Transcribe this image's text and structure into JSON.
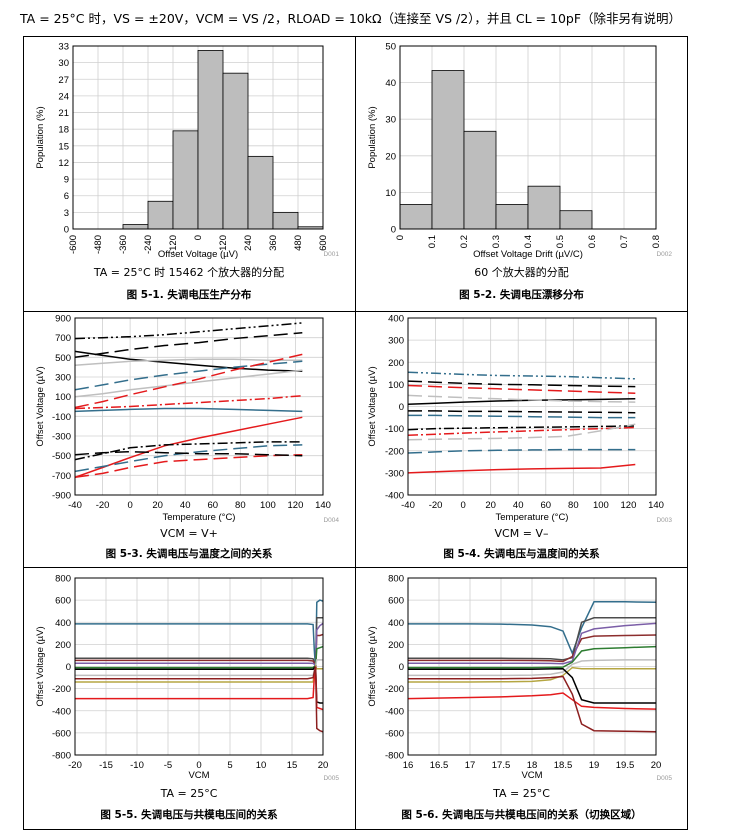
{
  "header": {
    "conditions": "TA = 25°C 时，VS = ±20V，VCM = VS /2，RLOAD = 10kΩ（连接至 VS /2），并且 CL = 10pF（除非另有说明）"
  },
  "figures": [
    {
      "caption": "图 5-1. 失调电压生产分布",
      "note": "TA = 25°C 时 15462 个放大器的分配",
      "code": "D001"
    },
    {
      "caption": "图 5-2. 失调电压漂移分布",
      "note": "60 个放大器的分配",
      "code": "D002"
    },
    {
      "caption": "图 5-3. 失调电压与温度之间的关系",
      "note": "VCM = V+",
      "code": "D004"
    },
    {
      "caption": "图 5-4. 失调电压与温度间的关系",
      "note": "VCM = V–",
      "code": "D003"
    },
    {
      "caption": "图 5-5. 失调电压与共模电压间的关系",
      "note": "TA = 25°C",
      "code": "D005"
    },
    {
      "caption": "图 5-6. 失调电压与共模电压间的关系（切换区域）",
      "note": "TA = 25°C",
      "code": "D005"
    }
  ],
  "chart_data": [
    {
      "type": "bar",
      "xlabel": "Offset Voltage (µV)",
      "ylabel": "Population (%)",
      "xticks": [
        -600,
        -480,
        -360,
        -240,
        -120,
        0,
        120,
        240,
        360,
        480,
        600
      ],
      "yticks": [
        0,
        3,
        6,
        9,
        12,
        15,
        18,
        21,
        24,
        27,
        30,
        33
      ],
      "xlim": [
        -600,
        600
      ],
      "ylim": [
        0,
        33
      ],
      "bins": [
        [
          -360,
          -240
        ],
        [
          -240,
          -120
        ],
        [
          -120,
          0
        ],
        [
          0,
          120
        ],
        [
          120,
          240
        ],
        [
          240,
          360
        ],
        [
          360,
          480
        ],
        [
          480,
          600
        ]
      ],
      "values": [
        0.8,
        5.0,
        17.7,
        32.2,
        28.1,
        13.1,
        3.0,
        0.4
      ]
    },
    {
      "type": "bar",
      "xlabel": "Offset Voltage Drift (µV/C)",
      "ylabel": "Population (%)",
      "xticks": [
        0,
        0.1,
        0.2,
        0.3,
        0.4,
        0.5,
        0.6,
        0.7,
        0.8
      ],
      "yticks": [
        0,
        10,
        20,
        30,
        40,
        50
      ],
      "xlim": [
        0,
        0.8
      ],
      "ylim": [
        0,
        50
      ],
      "bins": [
        [
          0,
          0.1
        ],
        [
          0.1,
          0.2
        ],
        [
          0.2,
          0.3
        ],
        [
          0.3,
          0.4
        ],
        [
          0.4,
          0.5
        ],
        [
          0.5,
          0.6
        ]
      ],
      "values": [
        6.7,
        43.3,
        26.7,
        6.7,
        11.7,
        5.0
      ]
    },
    {
      "type": "line",
      "xlabel": "Temperature (°C)",
      "ylabel": "Offset Voltage (µV)",
      "xticks": [
        -40,
        -20,
        0,
        20,
        40,
        60,
        80,
        100,
        120,
        140
      ],
      "yticks": [
        -900,
        -700,
        -500,
        -300,
        -100,
        100,
        300,
        500,
        700,
        900
      ],
      "xlim": [
        -40,
        140
      ],
      "ylim": [
        -900,
        900
      ],
      "x": [
        -40,
        -20,
        0,
        25,
        50,
        75,
        100,
        125
      ],
      "series": [
        {
          "color": "#000000",
          "dash": "10 3 2 3 2 3",
          "values": [
            690,
            700,
            710,
            730,
            760,
            790,
            820,
            850
          ]
        },
        {
          "color": "#000000",
          "dash": "14 6",
          "values": [
            500,
            540,
            580,
            620,
            650,
            690,
            720,
            750
          ]
        },
        {
          "color": "#000000",
          "dash": "",
          "values": [
            560,
            520,
            480,
            450,
            420,
            390,
            370,
            360
          ]
        },
        {
          "color": "#bfbfbf",
          "dash": "",
          "values": [
            420,
            440,
            460,
            470,
            480,
            480,
            470,
            470
          ]
        },
        {
          "color": "#bfbfbf",
          "dash": "",
          "values": [
            100,
            130,
            170,
            210,
            250,
            290,
            330,
            370
          ]
        },
        {
          "color": "#336e8c",
          "dash": "14 6",
          "values": [
            170,
            220,
            270,
            320,
            360,
            400,
            430,
            460
          ]
        },
        {
          "color": "#e41a1c",
          "dash": "14 6",
          "values": [
            -10,
            50,
            120,
            200,
            280,
            370,
            450,
            530
          ]
        },
        {
          "color": "#e41a1c",
          "dash": "10 3 2 3",
          "values": [
            -20,
            -10,
            0,
            20,
            40,
            60,
            80,
            110
          ]
        },
        {
          "color": "#336e8c",
          "dash": "",
          "values": [
            -50,
            -40,
            -30,
            -20,
            -20,
            -30,
            -40,
            -50
          ]
        },
        {
          "color": "#e41a1c",
          "dash": "",
          "values": [
            -720,
            -620,
            -520,
            -400,
            -320,
            -250,
            -180,
            -110
          ]
        },
        {
          "color": "#000000",
          "dash": "10 3 2 3",
          "values": [
            -540,
            -480,
            -420,
            -390,
            -380,
            -370,
            -360,
            -360
          ]
        },
        {
          "color": "#336e8c",
          "dash": "14 6",
          "values": [
            -660,
            -610,
            -560,
            -500,
            -460,
            -430,
            -400,
            -390
          ]
        },
        {
          "color": "#e41a1c",
          "dash": "14 6",
          "values": [
            -720,
            -680,
            -620,
            -560,
            -540,
            -520,
            -500,
            -490
          ]
        },
        {
          "color": "#000000",
          "dash": "14 6",
          "values": [
            -490,
            -470,
            -460,
            -470,
            -480,
            -480,
            -490,
            -500
          ]
        }
      ]
    },
    {
      "type": "line",
      "xlabel": "Temperature (°C)",
      "ylabel": "Offset Voltage (µV)",
      "xticks": [
        -40,
        -20,
        0,
        20,
        40,
        60,
        80,
        100,
        120,
        140
      ],
      "yticks": [
        -400,
        -300,
        -200,
        -100,
        0,
        100,
        200,
        300,
        400
      ],
      "xlim": [
        -40,
        140
      ],
      "ylim": [
        -400,
        400
      ],
      "x": [
        -40,
        -20,
        0,
        25,
        50,
        75,
        100,
        125
      ],
      "series": [
        {
          "color": "#336e8c",
          "dash": "10 3 2 3 2 3",
          "values": [
            155,
            150,
            145,
            140,
            138,
            135,
            130,
            125
          ]
        },
        {
          "color": "#000000",
          "dash": "14 6",
          "values": [
            115,
            110,
            105,
            100,
            98,
            95,
            92,
            90
          ]
        },
        {
          "color": "#e41a1c",
          "dash": "14 6",
          "values": [
            95,
            90,
            85,
            80,
            75,
            70,
            65,
            60
          ]
        },
        {
          "color": "#000000",
          "dash": "",
          "values": [
            10,
            15,
            20,
            25,
            28,
            30,
            32,
            35
          ]
        },
        {
          "color": "#bfbfbf",
          "dash": "14 6",
          "values": [
            50,
            45,
            40,
            35,
            30,
            25,
            22,
            20
          ]
        },
        {
          "color": "#000000",
          "dash": "14 6",
          "values": [
            -20,
            -20,
            -22,
            -22,
            -24,
            -25,
            -26,
            -28
          ]
        },
        {
          "color": "#336e8c",
          "dash": "14 6",
          "values": [
            -40,
            -40,
            -42,
            -44,
            -46,
            -48,
            -50,
            -50
          ]
        },
        {
          "color": "#e41a1c",
          "dash": "10 3 2 3",
          "values": [
            -130,
            -125,
            -120,
            -115,
            -110,
            -105,
            -100,
            -95
          ]
        },
        {
          "color": "#000000",
          "dash": "10 3 2 3",
          "values": [
            -105,
            -100,
            -98,
            -96,
            -94,
            -92,
            -90,
            -88
          ]
        },
        {
          "color": "#bfbfbf",
          "dash": "14 6",
          "values": [
            -150,
            -148,
            -146,
            -144,
            -140,
            -135,
            -110,
            -80
          ]
        },
        {
          "color": "#336e8c",
          "dash": "14 6",
          "values": [
            -210,
            -205,
            -200,
            -198,
            -196,
            -195,
            -195,
            -195
          ]
        },
        {
          "color": "#e41a1c",
          "dash": "",
          "values": [
            -300,
            -295,
            -290,
            -285,
            -282,
            -280,
            -278,
            -262
          ]
        }
      ]
    },
    {
      "type": "line",
      "xlabel": "VCM",
      "ylabel": "Offset Voltage (µV)",
      "xticks": [
        -20,
        -15,
        -10,
        -5,
        0,
        5,
        10,
        15,
        20
      ],
      "yticks": [
        -800,
        -600,
        -400,
        -200,
        0,
        200,
        400,
        600,
        800
      ],
      "xlim": [
        -20,
        20
      ],
      "ylim": [
        -800,
        800
      ],
      "x": [
        -20,
        10,
        17.5,
        18.4,
        18.6,
        18.8,
        19.0,
        19.5,
        20
      ],
      "series": [
        {
          "color": "#336e8c",
          "values": [
            385,
            385,
            385,
            380,
            150,
            -20,
            580,
            600,
            590
          ]
        },
        {
          "color": "#4d4d4d",
          "values": [
            75,
            75,
            75,
            70,
            40,
            0,
            440,
            440,
            440
          ]
        },
        {
          "color": "#8c2d2d",
          "values": [
            55,
            55,
            55,
            50,
            30,
            0,
            280,
            280,
            290
          ]
        },
        {
          "color": "#7b5ea7",
          "values": [
            30,
            30,
            30,
            28,
            20,
            0,
            330,
            370,
            390
          ]
        },
        {
          "color": "#2e7d32",
          "values": [
            -10,
            -10,
            -10,
            -10,
            0,
            0,
            160,
            170,
            180
          ]
        },
        {
          "color": "#bfbfbf",
          "values": [
            -80,
            -80,
            -80,
            -80,
            -30,
            0,
            60,
            60,
            60
          ]
        },
        {
          "color": "#000000",
          "values": [
            -25,
            -25,
            -25,
            -25,
            -10,
            0,
            -320,
            -330,
            -330
          ]
        },
        {
          "color": "#b5a642",
          "values": [
            -140,
            -140,
            -140,
            -140,
            -60,
            0,
            -20,
            -20,
            -20
          ]
        },
        {
          "color": "#e41a1c",
          "values": [
            -290,
            -290,
            -290,
            -280,
            -100,
            0,
            -370,
            -380,
            -390
          ]
        },
        {
          "color": "#8c1f1f",
          "values": [
            -110,
            -110,
            -110,
            -100,
            -50,
            0,
            -560,
            -580,
            -590
          ]
        }
      ]
    },
    {
      "type": "line",
      "xlabel": "VCM",
      "ylabel": "Offset Voltage (µV)",
      "xticks": [
        16,
        16.5,
        17,
        17.5,
        18,
        18.5,
        19,
        19.5,
        20
      ],
      "yticks": [
        -800,
        -600,
        -400,
        -200,
        0,
        200,
        400,
        600,
        800
      ],
      "xlim": [
        16,
        20
      ],
      "ylim": [
        -800,
        800
      ],
      "x": [
        16,
        17,
        17.5,
        18,
        18.3,
        18.5,
        18.65,
        18.8,
        19,
        19.5,
        20
      ],
      "series": [
        {
          "color": "#336e8c",
          "values": [
            385,
            385,
            383,
            375,
            360,
            320,
            120,
            350,
            585,
            585,
            580
          ]
        },
        {
          "color": "#4d4d4d",
          "values": [
            75,
            75,
            74,
            72,
            70,
            60,
            80,
            400,
            440,
            440,
            440
          ]
        },
        {
          "color": "#8c2d2d",
          "values": [
            55,
            55,
            55,
            54,
            52,
            45,
            90,
            250,
            275,
            280,
            285
          ]
        },
        {
          "color": "#7b5ea7",
          "values": [
            30,
            30,
            30,
            30,
            28,
            25,
            50,
            300,
            340,
            370,
            390
          ]
        },
        {
          "color": "#2e7d32",
          "values": [
            -10,
            -10,
            -10,
            -10,
            -8,
            -5,
            40,
            140,
            160,
            170,
            180
          ]
        },
        {
          "color": "#bfbfbf",
          "values": [
            -80,
            -80,
            -80,
            -78,
            -70,
            -50,
            20,
            50,
            55,
            60,
            60
          ]
        },
        {
          "color": "#b5a642",
          "values": [
            -140,
            -140,
            -138,
            -135,
            -120,
            -80,
            -10,
            -20,
            -20,
            -20,
            -20
          ]
        },
        {
          "color": "#000000",
          "values": [
            -25,
            -25,
            -25,
            -25,
            -22,
            -20,
            -100,
            -300,
            -330,
            -330,
            -330
          ]
        },
        {
          "color": "#e41a1c",
          "values": [
            -290,
            -280,
            -275,
            -265,
            -255,
            -240,
            -300,
            -360,
            -370,
            -380,
            -385
          ]
        },
        {
          "color": "#8c1f1f",
          "values": [
            -110,
            -110,
            -110,
            -108,
            -100,
            -90,
            -250,
            -520,
            -580,
            -585,
            -590
          ]
        }
      ]
    }
  ]
}
